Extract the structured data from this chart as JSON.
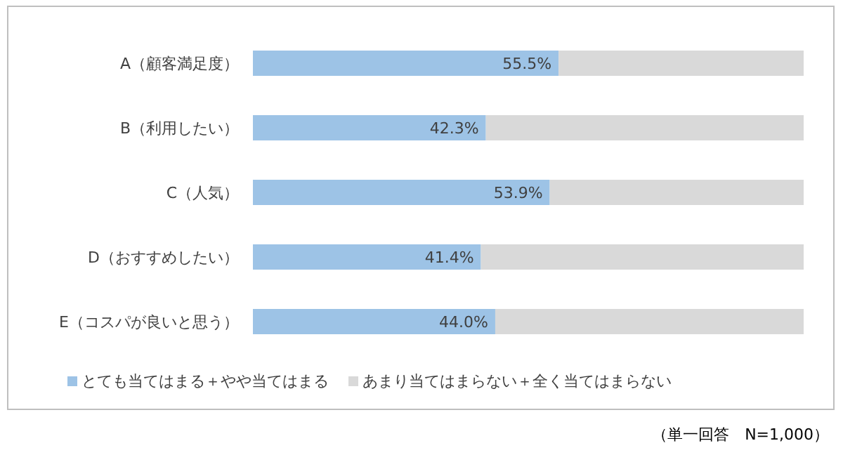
{
  "chart_data": {
    "type": "bar",
    "orientation": "horizontal",
    "stacked": true,
    "categories": [
      "A（顧客満足度）",
      "B（利用したい）",
      "C（人気）",
      "D（おすすめしたい）",
      "E（コスパが良いと思う）"
    ],
    "series": [
      {
        "name": "とても当てはまる＋やや当てはまる",
        "color": "#9dc3e6",
        "values": [
          55.5,
          42.3,
          53.9,
          41.4,
          44.0
        ],
        "value_labels": [
          "55.5%",
          "42.3%",
          "53.9%",
          "41.4%",
          "44.0%"
        ]
      },
      {
        "name": "あまり当てはまらない＋全く当てはまらない",
        "color": "#d9d9d9",
        "values": [
          44.5,
          57.7,
          46.1,
          58.6,
          56.0
        ]
      }
    ],
    "legend": "bottom",
    "annotations": [
      "（単一回答　N=1,000）"
    ]
  }
}
